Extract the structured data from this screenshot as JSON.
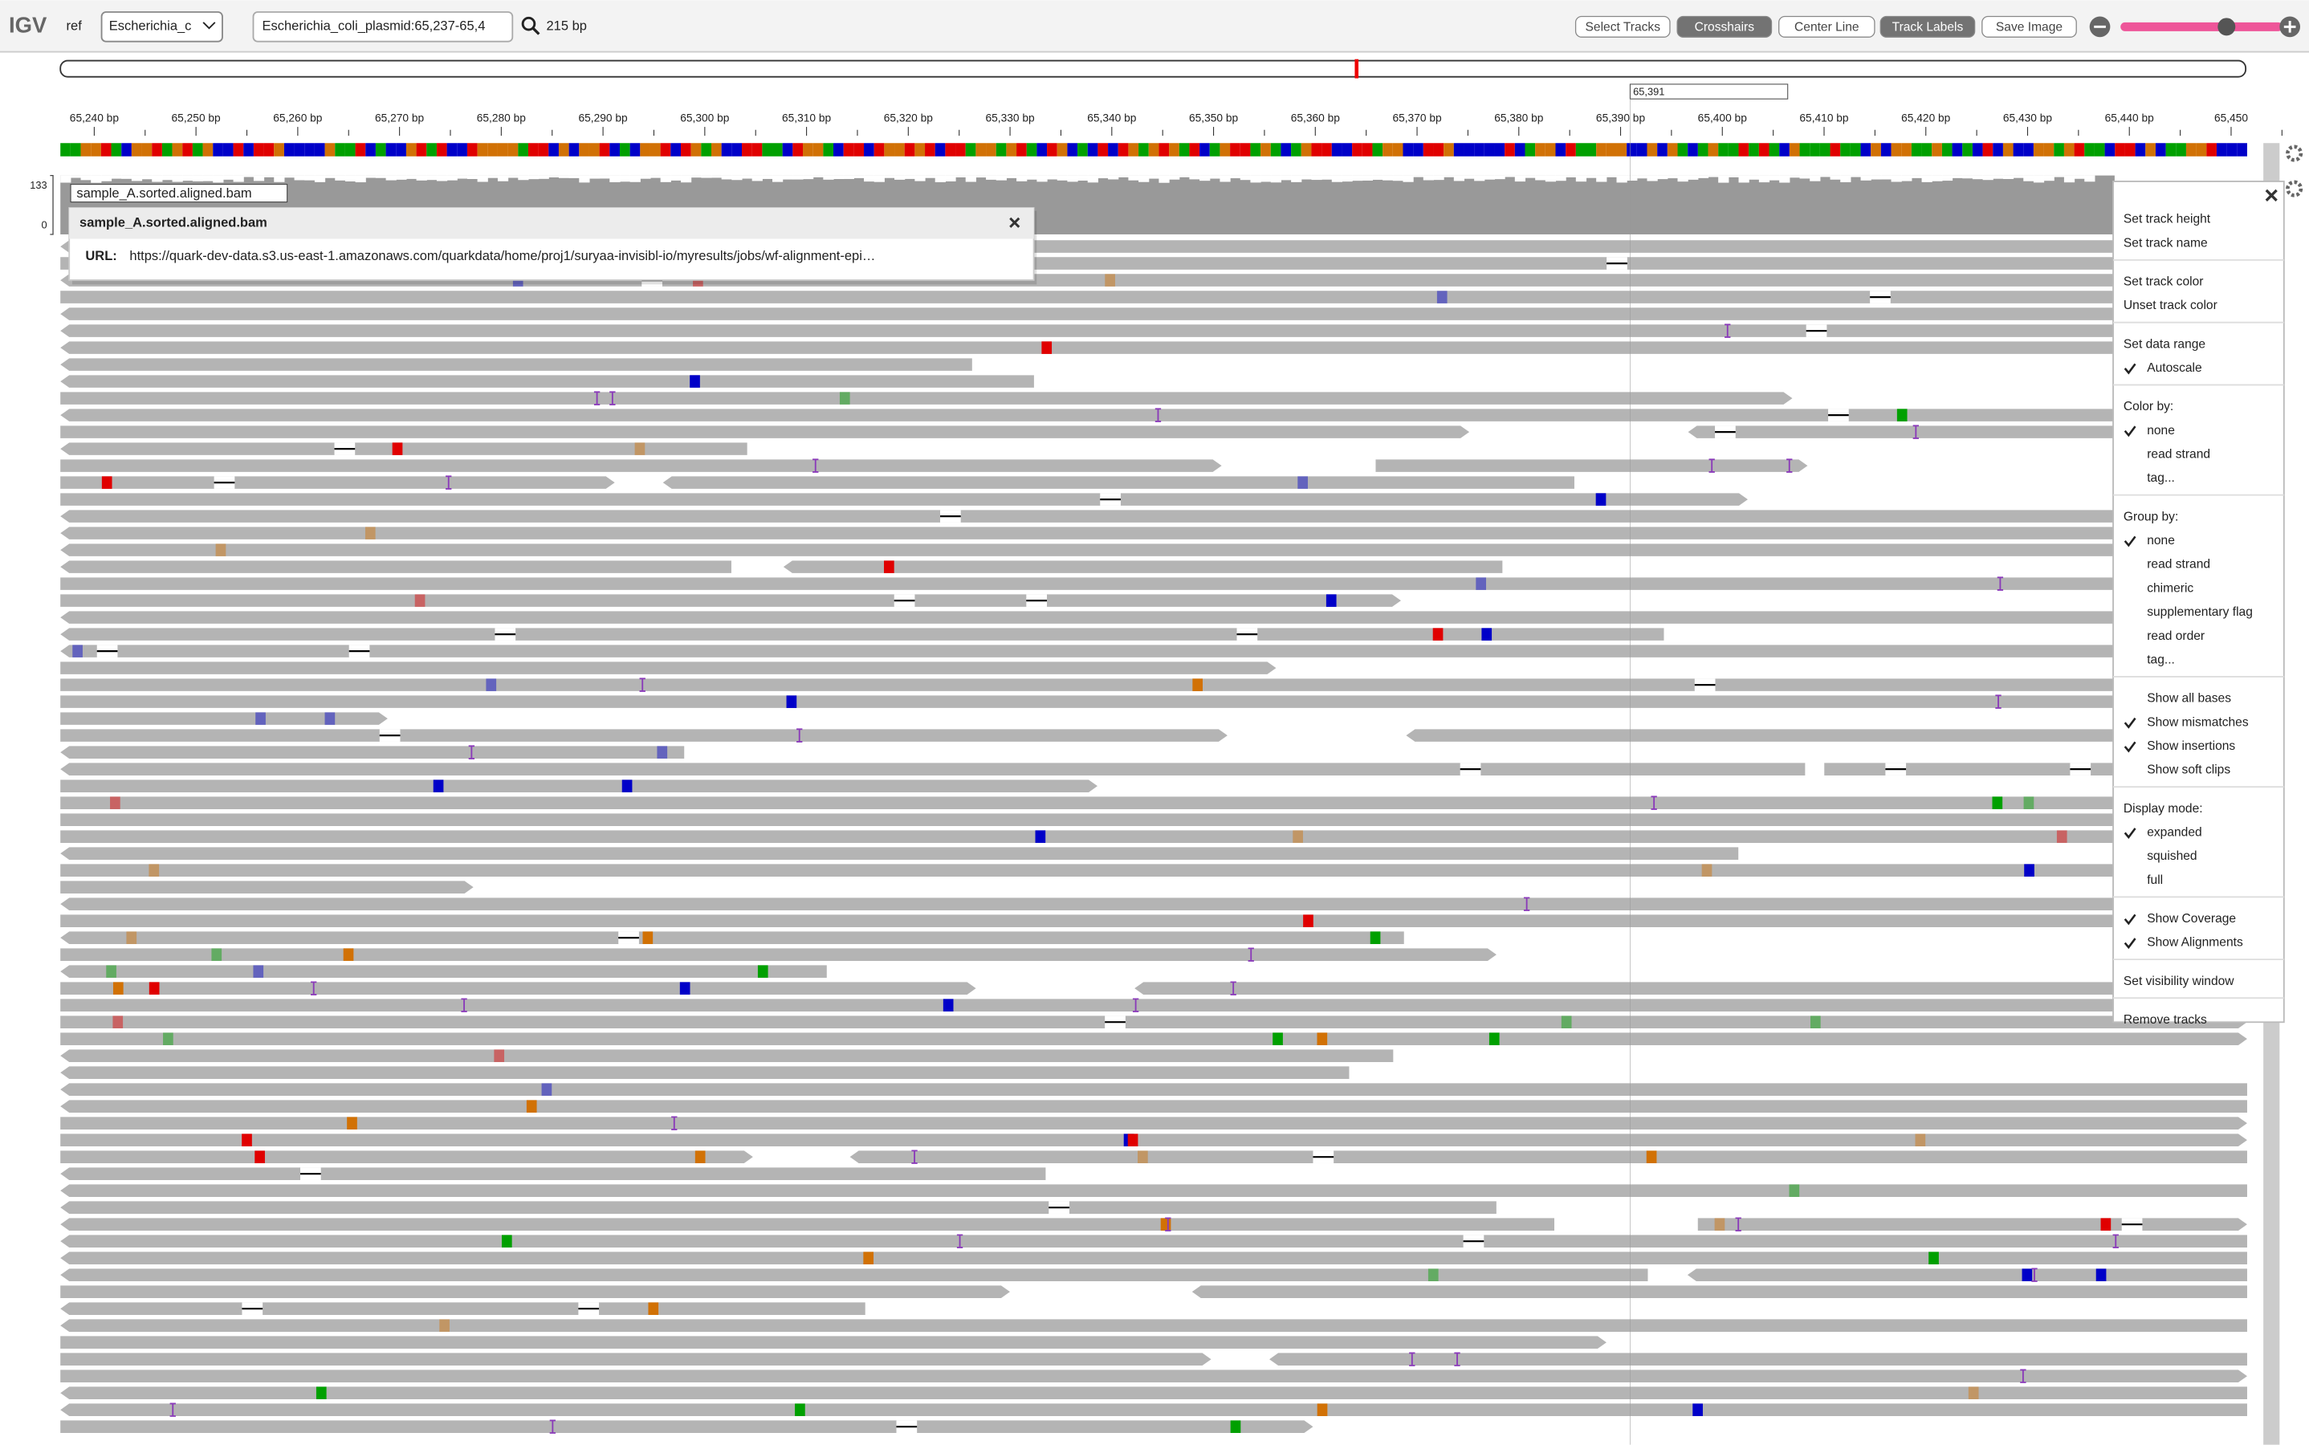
{
  "toolbar": {
    "logo": "IGV",
    "genome_label": "ref",
    "genome": "Escherichia_c",
    "locus": "Escherichia_coli_plasmid:65,237-65,4",
    "locus_size": "215 bp",
    "buttons": [
      "Select Tracks",
      "Crosshairs",
      "Center Line",
      "Track Labels",
      "Save Image"
    ]
  },
  "ruler": {
    "ticks": [
      "65,240 bp",
      "65,250 bp",
      "65,260 bp",
      "65,270 bp",
      "65,280 bp",
      "65,290 bp",
      "65,300 bp",
      "65,310 bp",
      "65,320 bp",
      "65,330 bp",
      "65,340 bp",
      "65,350 bp",
      "65,360 bp",
      "65,370 bp",
      "65,380 bp",
      "65,390 bp",
      "65,400 bp",
      "65,410 bp",
      "65,420 bp",
      "65,430 bp",
      "65,440 bp",
      "65,450"
    ],
    "center": "65,391"
  },
  "track": {
    "name": "sample_A.sorted.aligned.bam",
    "coverage_max": "133",
    "coverage_min": "0"
  },
  "popup": {
    "title": "sample_A.sorted.aligned.bam",
    "url_label": "URL:",
    "url": "https://quark-dev-data.s3.us-east-1.amazonaws.com/quarkdata/home/proj1/suryaa-invisibl-io/myresults/jobs/wf-alignment-epi…"
  },
  "menu": {
    "groups": [
      [
        {
          "label": "Set track height"
        },
        {
          "label": "Set track name"
        }
      ],
      [
        {
          "label": "Set track color"
        },
        {
          "label": "Unset track color"
        }
      ],
      [
        {
          "label": "Set data range"
        },
        {
          "label": "Autoscale",
          "checked": true
        }
      ],
      [
        {
          "label": "Color by:"
        },
        {
          "label": "none",
          "checked": true
        },
        {
          "label": "read strand",
          "checked": false
        },
        {
          "label": "tag...",
          "checked": false
        }
      ],
      [
        {
          "label": "Group by:"
        },
        {
          "label": "none",
          "checked": true
        },
        {
          "label": "read strand",
          "checked": false
        },
        {
          "label": "chimeric",
          "checked": false
        },
        {
          "label": "supplementary flag",
          "checked": false
        },
        {
          "label": "read order",
          "checked": false
        },
        {
          "label": "tag...",
          "checked": false
        }
      ],
      [
        {
          "label": "Show all bases",
          "checked": false
        },
        {
          "label": "Show mismatches",
          "checked": true
        },
        {
          "label": "Show insertions",
          "checked": true
        },
        {
          "label": "Show soft clips",
          "checked": false
        }
      ],
      [
        {
          "label": "Display mode:"
        },
        {
          "label": "expanded",
          "checked": true
        },
        {
          "label": "squished",
          "checked": false
        },
        {
          "label": "full",
          "checked": false
        }
      ],
      [
        {
          "label": "Show Coverage",
          "checked": true
        },
        {
          "label": "Show Alignments",
          "checked": true
        }
      ],
      [
        {
          "label": "Set visibility window"
        }
      ],
      [
        {
          "label": "Remove tracks"
        }
      ]
    ]
  }
}
